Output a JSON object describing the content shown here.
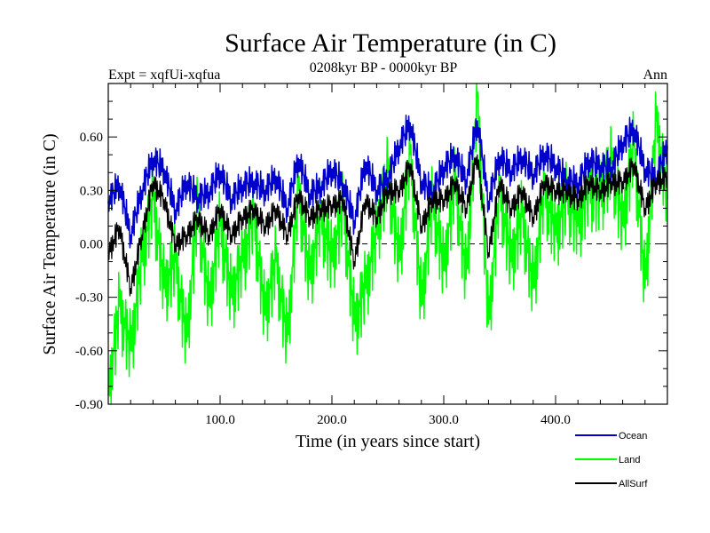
{
  "chart_data": {
    "type": "line",
    "title": "Surface Air Temperature (in C)",
    "subtitle": "0208kyr BP - 0000kyr BP",
    "top_left_label": "Expt = xqfUi-xqfua",
    "top_right_label": "Ann",
    "xlabel": "Time (in years since start)",
    "ylabel": "Surface Air Temperature (in C)",
    "xlim": [
      0,
      500
    ],
    "ylim": [
      -0.9,
      0.9
    ],
    "x_ticks": [
      {
        "value": 100,
        "label": "100.0"
      },
      {
        "value": 200,
        "label": "200.0"
      },
      {
        "value": 300,
        "label": "300.0"
      },
      {
        "value": 400,
        "label": "400.0"
      }
    ],
    "y_ticks": [
      {
        "value": 0.6,
        "label": "0.60"
      },
      {
        "value": 0.3,
        "label": "0.30"
      },
      {
        "value": 0.0,
        "label": "0.00"
      },
      {
        "value": -0.3,
        "label": "-0.30"
      },
      {
        "value": -0.6,
        "label": "-0.60"
      },
      {
        "value": -0.9,
        "label": "-0.90"
      }
    ],
    "zero_line": true,
    "legend_position": "bottom-right",
    "x": [
      0,
      10,
      20,
      30,
      40,
      50,
      60,
      70,
      80,
      90,
      100,
      110,
      120,
      130,
      140,
      150,
      160,
      170,
      180,
      190,
      200,
      210,
      220,
      230,
      240,
      250,
      260,
      270,
      280,
      290,
      300,
      310,
      320,
      330,
      340,
      350,
      360,
      370,
      380,
      390,
      400,
      410,
      420,
      430,
      440,
      450,
      460,
      470,
      480,
      490,
      500
    ],
    "series": [
      {
        "name": "Ocean",
        "color": "#0000cc",
        "values": [
          0.24,
          0.34,
          0.05,
          0.3,
          0.48,
          0.42,
          0.19,
          0.35,
          0.26,
          0.29,
          0.41,
          0.25,
          0.33,
          0.35,
          0.3,
          0.38,
          0.2,
          0.48,
          0.28,
          0.32,
          0.42,
          0.34,
          0.13,
          0.46,
          0.3,
          0.37,
          0.55,
          0.68,
          0.35,
          0.29,
          0.43,
          0.5,
          0.36,
          0.69,
          0.24,
          0.49,
          0.41,
          0.49,
          0.39,
          0.51,
          0.44,
          0.36,
          0.34,
          0.47,
          0.44,
          0.43,
          0.57,
          0.65,
          0.42,
          0.37,
          0.55
        ]
      },
      {
        "name": "Land",
        "color": "#00ff00",
        "values": [
          -0.85,
          -0.35,
          -0.6,
          -0.1,
          0.25,
          -0.25,
          -0.1,
          -0.55,
          0.2,
          -0.35,
          0.1,
          -0.3,
          -0.1,
          0.15,
          -0.4,
          -0.1,
          -0.55,
          0.3,
          -0.2,
          0.15,
          -0.1,
          0.2,
          -0.45,
          -0.25,
          0.05,
          0.4,
          -0.1,
          0.5,
          -0.35,
          0.25,
          -0.15,
          0.35,
          -0.2,
          0.82,
          -0.45,
          0.3,
          -0.1,
          0.15,
          -0.25,
          0.3,
          0.05,
          0.25,
          0.1,
          0.3,
          0.25,
          0.45,
          0.1,
          0.55,
          -0.25,
          0.69,
          0.25
        ]
      },
      {
        "name": "AllSurf",
        "color": "#000000",
        "values": [
          -0.05,
          0.1,
          -0.25,
          0.05,
          0.35,
          0.25,
          0.0,
          0.05,
          0.15,
          0.05,
          0.2,
          0.05,
          0.15,
          0.2,
          0.1,
          0.2,
          0.05,
          0.28,
          0.15,
          0.2,
          0.22,
          0.25,
          -0.1,
          0.25,
          0.15,
          0.3,
          0.3,
          0.45,
          0.1,
          0.25,
          0.25,
          0.35,
          0.2,
          0.5,
          -0.05,
          0.35,
          0.2,
          0.3,
          0.15,
          0.35,
          0.3,
          0.3,
          0.25,
          0.35,
          0.3,
          0.35,
          0.35,
          0.45,
          0.2,
          0.35,
          0.38
        ]
      }
    ]
  }
}
